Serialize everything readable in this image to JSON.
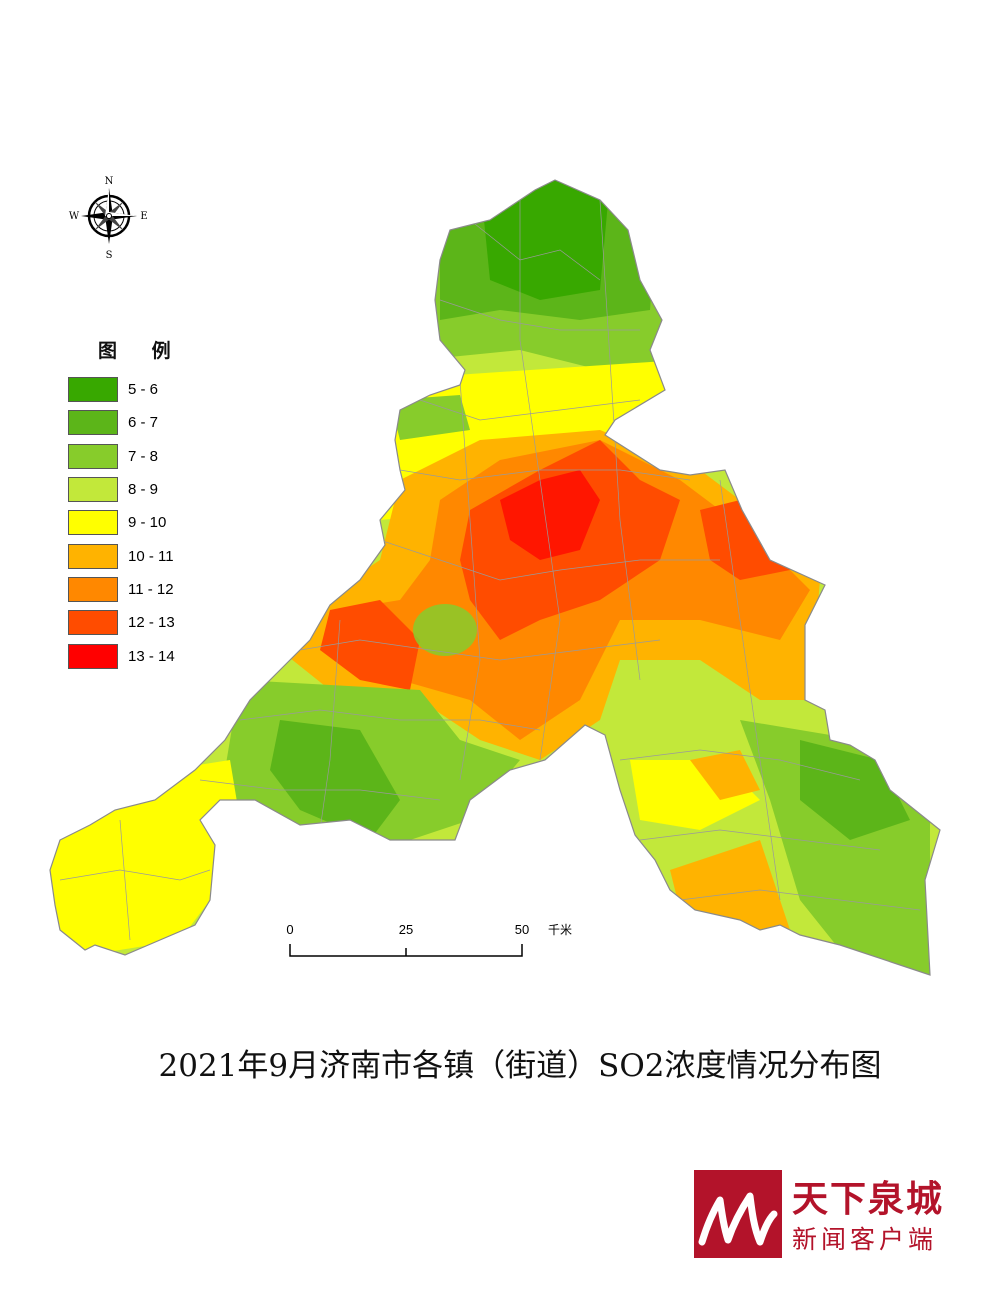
{
  "map": {
    "title": "2021年9月济南市各镇（街道）SO2浓度情况分布图",
    "compass": {
      "north": "N",
      "south": "S",
      "east": "E",
      "west": "W"
    },
    "legend": {
      "title": "图 例",
      "items": [
        {
          "label": "5 - 6",
          "color": "#38a800"
        },
        {
          "label": "6 - 7",
          "color": "#5cb519"
        },
        {
          "label": "7 - 8",
          "color": "#87cc2b"
        },
        {
          "label": "8 - 9",
          "color": "#c2e83a"
        },
        {
          "label": "9 - 10",
          "color": "#ffff00"
        },
        {
          "label": "10 - 11",
          "color": "#ffb300"
        },
        {
          "label": "11 - 12",
          "color": "#ff8800"
        },
        {
          "label": "12 - 13",
          "color": "#ff4c00"
        },
        {
          "label": "13 - 14",
          "color": "#ff0000"
        }
      ]
    },
    "scale": {
      "ticks": [
        "0",
        "25",
        "50"
      ],
      "unit": "千米"
    }
  },
  "logo": {
    "line1": "天下泉城",
    "line2": "新闻客户端",
    "color": "#b3132a"
  }
}
